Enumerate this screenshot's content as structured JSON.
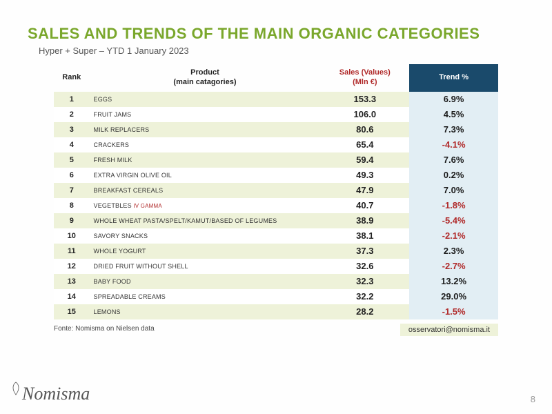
{
  "title": "SALES AND TRENDS OF THE MAIN ORGANIC CATEGORIES",
  "subtitle": "Hyper + Super – YTD 1 January 2023",
  "headers": {
    "rank": "Rank",
    "product_line1": "Product",
    "product_line2": "(main catagories)",
    "sales_line1": "Sales (Values)",
    "sales_line2": "(Mln €)",
    "trend": "Trend %"
  },
  "rows": [
    {
      "rank": "1",
      "product": "EGGS",
      "extra": "",
      "sales": "153.3",
      "trend": "6.9%",
      "neg": false
    },
    {
      "rank": "2",
      "product": "FRUIT JAMS",
      "extra": "",
      "sales": "106.0",
      "trend": "4.5%",
      "neg": false
    },
    {
      "rank": "3",
      "product": "MILK REPLACERS",
      "extra": "",
      "sales": "80.6",
      "trend": "7.3%",
      "neg": false
    },
    {
      "rank": "4",
      "product": "CRACKERS",
      "extra": "",
      "sales": "65.4",
      "trend": "-4.1%",
      "neg": true
    },
    {
      "rank": "5",
      "product": "FRESH MILK",
      "extra": "",
      "sales": "59.4",
      "trend": "7.6%",
      "neg": false
    },
    {
      "rank": "6",
      "product": "EXTRA VIRGIN OLIVE OIL",
      "extra": "",
      "sales": "49.3",
      "trend": "0.2%",
      "neg": false
    },
    {
      "rank": "7",
      "product": "BREAKFAST CEREALS",
      "extra": "",
      "sales": "47.9",
      "trend": "7.0%",
      "neg": false
    },
    {
      "rank": "8",
      "product": "VEGETBLES",
      "extra": "IV Gamma",
      "sales": "40.7",
      "trend": "-1.8%",
      "neg": true
    },
    {
      "rank": "9",
      "product": "WHOLE WHEAT PASTA/SPELT/KAMUT/BASED OF LEGUMES",
      "extra": "",
      "sales": "38.9",
      "trend": "-5.4%",
      "neg": true
    },
    {
      "rank": "10",
      "product": "SAVORY SNACKS",
      "extra": "",
      "sales": "38.1",
      "trend": "-2.1%",
      "neg": true
    },
    {
      "rank": "11",
      "product": "WHOLE YOGURT",
      "extra": "",
      "sales": "37.3",
      "trend": "2.3%",
      "neg": false
    },
    {
      "rank": "12",
      "product": "DRIED FRUIT WITHOUT SHELL",
      "extra": "",
      "sales": "32.6",
      "trend": "-2.7%",
      "neg": true
    },
    {
      "rank": "13",
      "product": "BABY FOOD",
      "extra": "",
      "sales": "32.3",
      "trend": "13.2%",
      "neg": false
    },
    {
      "rank": "14",
      "product": "SPREADABLE CREAMS",
      "extra": "",
      "sales": "32.2",
      "trend": "29.0%",
      "neg": false
    },
    {
      "rank": "15",
      "product": "LEMONS",
      "extra": "",
      "sales": "28.2",
      "trend": "-1.5%",
      "neg": true
    }
  ],
  "source": "Fonte: Nomisma on Nielsen data",
  "email": "osservatori@nomisma.it",
  "logo": "Nomisma",
  "page": "8",
  "colors": {
    "accent_green": "#7aa72c",
    "row_stripe": "#eef2d9",
    "trend_bg": "#e2eef4",
    "trend_header_bg": "#1a4a6b",
    "negative": "#b02a2a"
  }
}
